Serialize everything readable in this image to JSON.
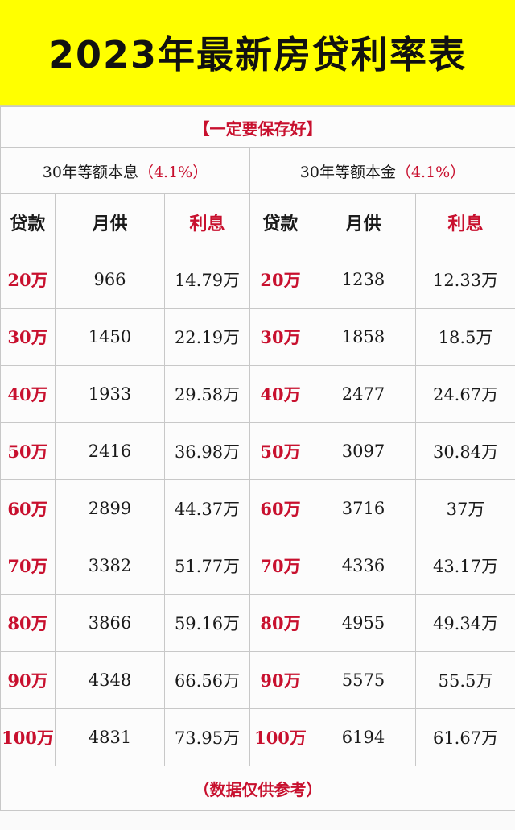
{
  "title": "2023年最新房贷利率表",
  "notice": "【一定要保存好】",
  "sections": [
    {
      "name": "30年等额本息",
      "rate": "（4.1%）"
    },
    {
      "name": "30年等额本金",
      "rate": "（4.1%）"
    }
  ],
  "headers": {
    "loan": "贷款",
    "monthly": "月供",
    "interest": "利息"
  },
  "rows": [
    {
      "loan": "20万",
      "a_monthly": "966",
      "a_interest": "14.79万",
      "b_monthly": "1238",
      "b_interest": "12.33万"
    },
    {
      "loan": "30万",
      "a_monthly": "1450",
      "a_interest": "22.19万",
      "b_monthly": "1858",
      "b_interest": "18.5万"
    },
    {
      "loan": "40万",
      "a_monthly": "1933",
      "a_interest": "29.58万",
      "b_monthly": "2477",
      "b_interest": "24.67万"
    },
    {
      "loan": "50万",
      "a_monthly": "2416",
      "a_interest": "36.98万",
      "b_monthly": "3097",
      "b_interest": "30.84万"
    },
    {
      "loan": "60万",
      "a_monthly": "2899",
      "a_interest": "44.37万",
      "b_monthly": "3716",
      "b_interest": "37万"
    },
    {
      "loan": "70万",
      "a_monthly": "3382",
      "a_interest": "51.77万",
      "b_monthly": "4336",
      "b_interest": "43.17万"
    },
    {
      "loan": "80万",
      "a_monthly": "3866",
      "a_interest": "59.16万",
      "b_monthly": "4955",
      "b_interest": "49.34万"
    },
    {
      "loan": "90万",
      "a_monthly": "4348",
      "a_interest": "66.56万",
      "b_monthly": "5575",
      "b_interest": "55.5万"
    },
    {
      "loan": "100万",
      "a_monthly": "4831",
      "a_interest": "73.95万",
      "b_monthly": "6194",
      "b_interest": "61.67万"
    }
  ],
  "footer": "（数据仅供参考）",
  "colors": {
    "banner": "#ffff00",
    "accent_red": "#c8102e",
    "text": "#1a1a1a"
  }
}
